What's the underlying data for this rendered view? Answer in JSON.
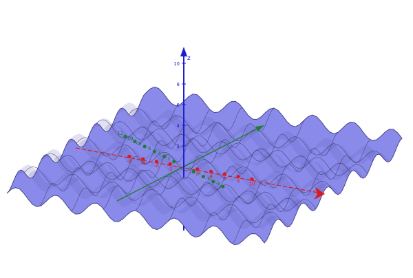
{
  "scene": {
    "axes": {
      "z": {
        "label": "z",
        "ticks": [
          "2",
          "4",
          "6",
          "8",
          "10"
        ],
        "color": "#1f1fd0"
      },
      "x": {
        "ticks": [
          "-8",
          "-6",
          "-4",
          "-2",
          "2",
          "4",
          "6",
          "8",
          "10"
        ],
        "color": "#d81b1b"
      },
      "y": {
        "ticks": [
          "-8",
          "-6",
          "-4",
          "-2",
          "2",
          "4",
          "6",
          "8",
          "10",
          "12"
        ],
        "color": "#1e7d32"
      }
    },
    "surface": {
      "fill": "#8a8aea",
      "stroke": "#3a3a6a",
      "shadow": "#5a5ab0"
    }
  }
}
